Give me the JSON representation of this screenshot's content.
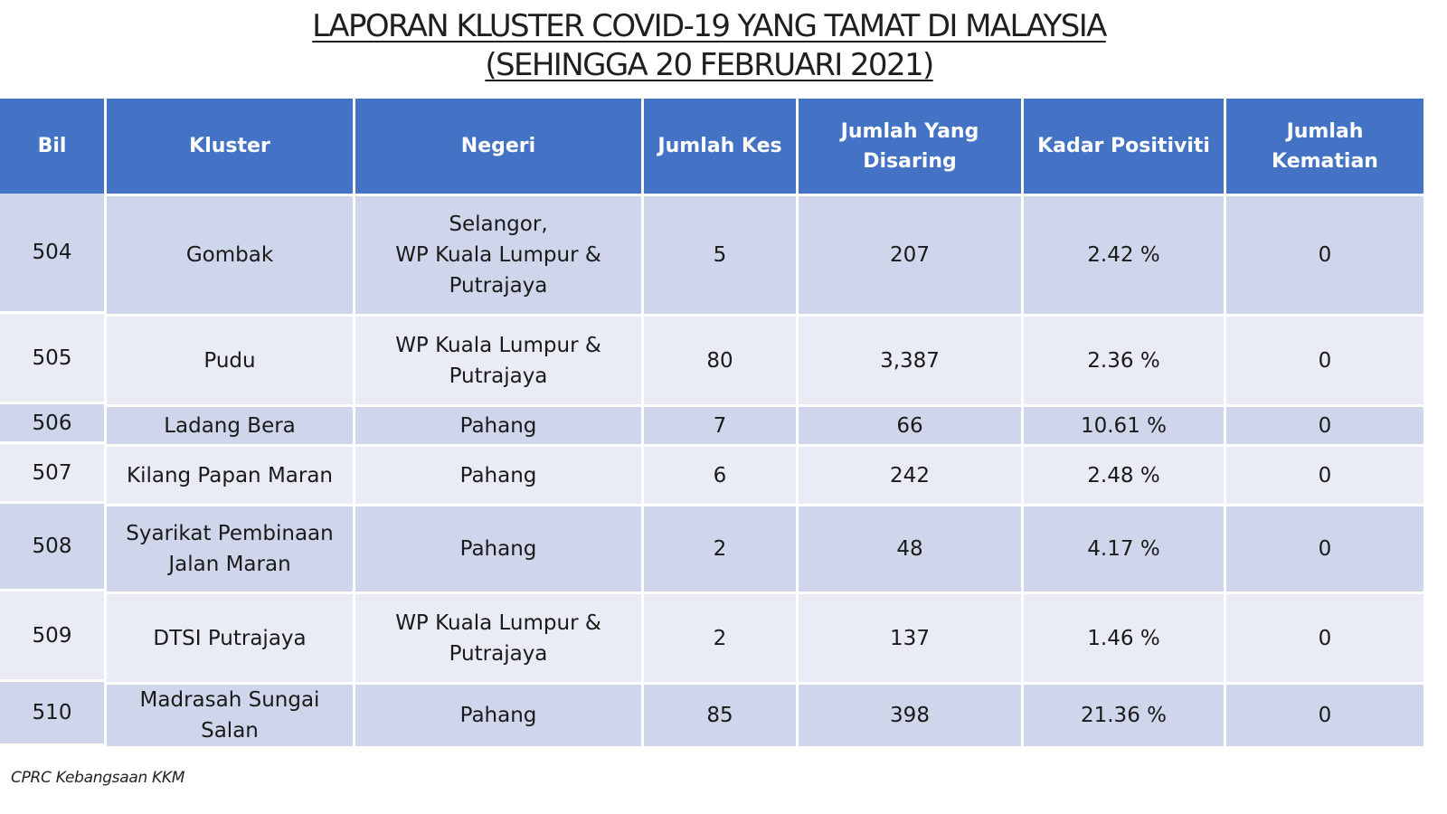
{
  "title": {
    "line1": "LAPORAN KLUSTER COVID-19 YANG TAMAT DI MALAYSIA",
    "line2": "(SEHINGGA 20 FEBRUARI 2021)"
  },
  "table": {
    "headers": {
      "bil": "Bil",
      "kluster": "Kluster",
      "negeri": "Negeri",
      "jumlah_kes": "Jumlah Kes",
      "jumlah_disaring_1": "Jumlah Yang",
      "jumlah_disaring_2": "Disaring",
      "kadar_positiviti": "Kadar Positiviti",
      "jumlah_kematian": "Jumlah Kematian"
    },
    "rows": [
      {
        "bil": "504",
        "kluster": [
          "Gombak"
        ],
        "negeri": [
          "Selangor,",
          "WP Kuala Lumpur &",
          "Putrajaya"
        ],
        "jumlah_kes": "5",
        "jumlah_disaring": "207",
        "kadar_positiviti": "2.42 %",
        "jumlah_kematian": "0"
      },
      {
        "bil": "505",
        "kluster": [
          "Pudu"
        ],
        "negeri": [
          "WP Kuala Lumpur &",
          "Putrajaya"
        ],
        "jumlah_kes": "80",
        "jumlah_disaring": "3,387",
        "kadar_positiviti": "2.36 %",
        "jumlah_kematian": "0"
      },
      {
        "bil": "506",
        "kluster": [
          "Ladang Bera"
        ],
        "negeri": [
          "Pahang"
        ],
        "jumlah_kes": "7",
        "jumlah_disaring": "66",
        "kadar_positiviti": "10.61 %",
        "jumlah_kematian": "0"
      },
      {
        "bil": "507",
        "kluster": [
          "Kilang Papan Maran"
        ],
        "negeri": [
          "Pahang"
        ],
        "jumlah_kes": "6",
        "jumlah_disaring": "242",
        "kadar_positiviti": "2.48 %",
        "jumlah_kematian": "0"
      },
      {
        "bil": "508",
        "kluster": [
          "Syarikat Pembinaan",
          "Jalan Maran"
        ],
        "negeri": [
          "Pahang"
        ],
        "jumlah_kes": "2",
        "jumlah_disaring": "48",
        "kadar_positiviti": "4.17 %",
        "jumlah_kematian": "0"
      },
      {
        "bil": "509",
        "kluster": [
          "DTSI Putrajaya"
        ],
        "negeri": [
          "WP Kuala Lumpur &",
          "Putrajaya"
        ],
        "jumlah_kes": "2",
        "jumlah_disaring": "137",
        "kadar_positiviti": "1.46 %",
        "jumlah_kematian": "0"
      },
      {
        "bil": "510",
        "kluster": [
          "Madrasah Sungai Salan"
        ],
        "negeri": [
          "Pahang"
        ],
        "jumlah_kes": "85",
        "jumlah_disaring": "398",
        "kadar_positiviti": "21.36 %",
        "jumlah_kematian": "0"
      }
    ]
  },
  "footer": {
    "source": "CPRC Kebangsaan KKM"
  }
}
